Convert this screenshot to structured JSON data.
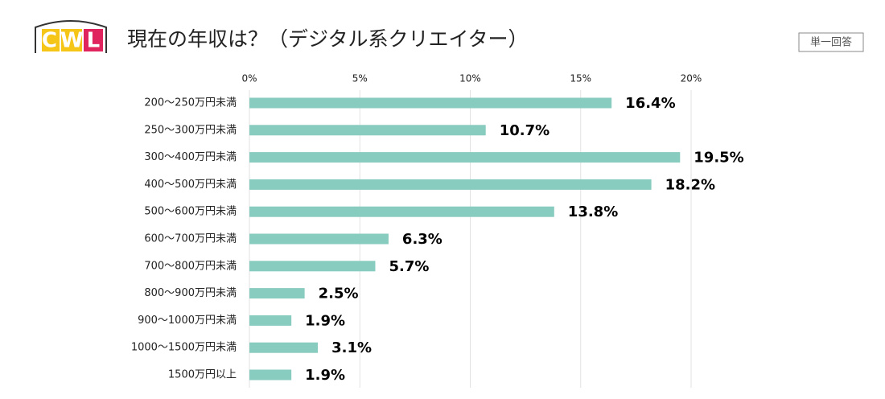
{
  "chart_data": {
    "type": "hbar",
    "logo": "CWL",
    "title": "現在の年収は？（デジタル系クリエイター）",
    "badge": "単一回答",
    "categories": [
      "200〜250万円未満",
      "250〜300万円未満",
      "300〜400万円未満",
      "400〜500万円未満",
      "500〜600万円未満",
      "600〜700万円未満",
      "700〜800万円未満",
      "800〜900万円未満",
      "900〜1000万円未満",
      "1000〜1500万円未満",
      "1500万円以上"
    ],
    "values": [
      16.4,
      10.7,
      19.5,
      18.2,
      13.8,
      6.3,
      5.7,
      2.5,
      1.9,
      3.1,
      1.9
    ],
    "value_labels": [
      "16.4%",
      "10.7%",
      "19.5%",
      "18.2%",
      "13.8%",
      "6.3%",
      "5.7%",
      "2.5%",
      "1.9%",
      "3.1%",
      "1.9%"
    ],
    "color": "#88cbbf",
    "xlim": [
      0,
      20
    ],
    "xticks": [
      {
        "value": 0,
        "label": "0%"
      },
      {
        "value": 5,
        "label": "5%"
      },
      {
        "value": 10,
        "label": "10%"
      },
      {
        "value": 15,
        "label": "15%"
      },
      {
        "value": 20,
        "label": "20%"
      }
    ],
    "grid": true
  }
}
